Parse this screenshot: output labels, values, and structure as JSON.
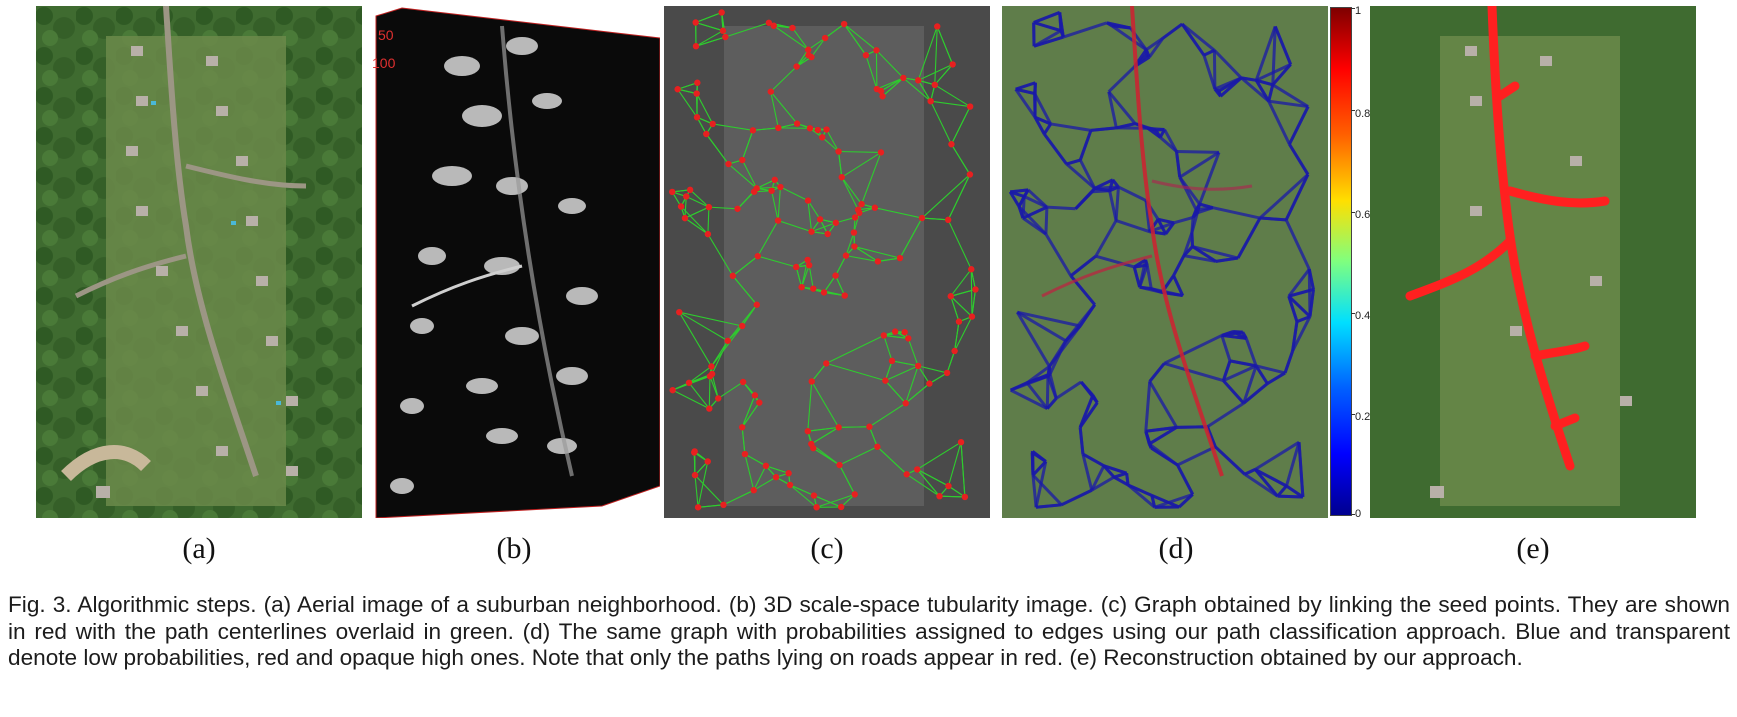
{
  "figure": {
    "panel_labels": [
      "(a)",
      "(b)",
      "(c)",
      "(d)",
      "(e)"
    ],
    "panel_b_axis_ticks": [
      "50",
      "100"
    ],
    "colorbar_ticks": [
      "1",
      "0.8",
      "0.6",
      "0.4",
      "0.2",
      "0"
    ],
    "caption": "Fig. 3. Algorithmic steps. (a) Aerial image of a suburban neighborhood. (b) 3D scale-space tubularity image. (c) Graph obtained by linking the seed points. They are shown in red with the path centerlines overlaid in green. (d) The same graph with probabilities assigned to edges using our path classification approach. Blue and transparent denote low probabilities, red and opaque high ones. Note that only the paths lying on roads appear in red. (e) Reconstruction obtained by our approach."
  },
  "colors": {
    "seed_points": "#e82020",
    "centerlines": "#2ecc2e",
    "low_probability": "#1a1aa8",
    "high_probability": "#e02020",
    "reconstruction": "#ff2020"
  }
}
